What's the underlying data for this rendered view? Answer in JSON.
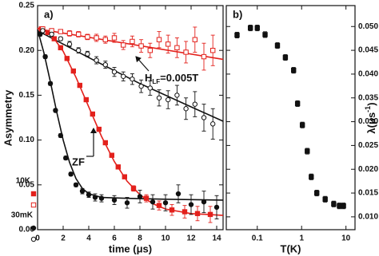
{
  "chart_data": [
    {
      "type": "scatter",
      "panel_label": "a)",
      "xlabel": "time (μs)",
      "ylabel": "Asymmetry",
      "xlim": [
        0,
        14.5
      ],
      "xticks": [
        0,
        2,
        4,
        6,
        8,
        10,
        12,
        14
      ],
      "ylim": [
        0,
        0.25
      ],
      "yticks": [
        {
          "value": 0,
          "label": "0.00"
        },
        0.05,
        {
          "value": 0.1,
          "label": "0.10"
        },
        0.15,
        {
          "value": 0.2,
          "label": "0.20"
        },
        0.25
      ],
      "ytick_side": "left",
      "legend": [
        "10K",
        "30mK"
      ],
      "series": [
        {
          "color": "#e3211c",
          "marker": "square",
          "filled": true,
          "x": [
            0.3,
            0.8,
            1.3,
            1.8,
            2.3,
            2.8,
            3.3,
            3.8,
            4.3,
            4.8,
            5.3,
            5.8,
            6.3,
            6.8,
            7.5,
            8.5,
            9.5,
            10.5,
            11.5,
            12.5,
            13.5
          ],
          "values": [
            0.224,
            0.22,
            0.213,
            0.203,
            0.191,
            0.177,
            0.161,
            0.145,
            0.129,
            0.112,
            0.097,
            0.083,
            0.07,
            0.059,
            0.046,
            0.035,
            0.027,
            0.022,
            0.02,
            0.018,
            0.017
          ],
          "errors": [
            0.002,
            0.002,
            0.002,
            0.002,
            0.002,
            0.002,
            0.002,
            0.002,
            0.002,
            0.002,
            0.002,
            0.002,
            0.002,
            0.002,
            0.003,
            0.004,
            0.005,
            0.006,
            0.007,
            0.008,
            0.009
          ]
        },
        {
          "color": "#e3211c",
          "marker": "square",
          "filled": false,
          "x": [
            0.4,
            1.1,
            1.8,
            2.5,
            3.2,
            3.9,
            4.6,
            5.3,
            6,
            6.7,
            7.4,
            8.1,
            8.8,
            9.5,
            10.2,
            10.9,
            11.6,
            12.3,
            13,
            13.7
          ],
          "values": [
            0.224,
            0.222,
            0.221,
            0.219,
            0.218,
            0.215,
            0.214,
            0.212,
            0.214,
            0.206,
            0.21,
            0.205,
            0.2,
            0.212,
            0.207,
            0.203,
            0.198,
            0.212,
            0.193,
            0.2
          ],
          "errors": [
            0.002,
            0.002,
            0.002,
            0.003,
            0.003,
            0.003,
            0.004,
            0.004,
            0.005,
            0.005,
            0.006,
            0.007,
            0.008,
            0.009,
            0.01,
            0.011,
            0.012,
            0.014,
            0.015,
            0.017
          ]
        },
        {
          "color": "#111111",
          "marker": "circle",
          "filled": true,
          "x": [
            0.2,
            0.6,
            1,
            1.4,
            1.8,
            2.2,
            2.6,
            3,
            3.5,
            4,
            4.5,
            5,
            6,
            7,
            8,
            9,
            10,
            11,
            12,
            13,
            14
          ],
          "values": [
            0.218,
            0.193,
            0.163,
            0.133,
            0.105,
            0.08,
            0.062,
            0.05,
            0.043,
            0.039,
            0.036,
            0.035,
            0.033,
            0.03,
            0.037,
            0.031,
            0.03,
            0.04,
            0.028,
            0.031,
            0.025
          ],
          "errors": [
            0.002,
            0.002,
            0.002,
            0.002,
            0.002,
            0.002,
            0.002,
            0.002,
            0.003,
            0.003,
            0.004,
            0.004,
            0.005,
            0.006,
            0.007,
            0.008,
            0.009,
            0.01,
            0.011,
            0.012,
            0.013
          ]
        },
        {
          "color": "#111111",
          "marker": "circle",
          "filled": false,
          "x": [
            0.4,
            1.1,
            1.8,
            2.5,
            3.2,
            3.9,
            4.6,
            5.3,
            6,
            6.7,
            7.4,
            8.1,
            8.8,
            9.5,
            10.2,
            10.9,
            11.6,
            12.3,
            13,
            13.7
          ],
          "values": [
            0.222,
            0.218,
            0.213,
            0.207,
            0.2,
            0.196,
            0.189,
            0.184,
            0.176,
            0.171,
            0.168,
            0.16,
            0.158,
            0.147,
            0.145,
            0.15,
            0.135,
            0.14,
            0.125,
            0.118
          ],
          "errors": [
            0.002,
            0.002,
            0.002,
            0.003,
            0.003,
            0.003,
            0.004,
            0.004,
            0.005,
            0.005,
            0.006,
            0.007,
            0.008,
            0.009,
            0.01,
            0.011,
            0.012,
            0.014,
            0.015,
            0.017
          ]
        }
      ],
      "fits": [
        {
          "color": "#e3211c",
          "x": [
            0,
            1,
            2,
            3,
            4,
            5,
            6,
            7,
            8,
            9,
            10,
            12,
            14.5
          ],
          "values": [
            0.225,
            0.219,
            0.199,
            0.17,
            0.137,
            0.104,
            0.076,
            0.054,
            0.039,
            0.029,
            0.023,
            0.018,
            0.016
          ]
        },
        {
          "color": "#e3211c",
          "x": [
            0,
            14.5
          ],
          "values": [
            0.224,
            0.19
          ]
        },
        {
          "color": "#111111",
          "x": [
            0,
            0.5,
            1,
            1.5,
            2,
            2.5,
            3,
            3.5,
            4,
            5,
            7,
            10,
            14.5
          ],
          "values": [
            0.223,
            0.197,
            0.165,
            0.131,
            0.1,
            0.075,
            0.057,
            0.046,
            0.04,
            0.036,
            0.035,
            0.034,
            0.033
          ]
        },
        {
          "color": "#111111",
          "x": [
            0,
            4,
            8,
            12,
            14.5
          ],
          "values": [
            0.222,
            0.192,
            0.163,
            0.137,
            0.121
          ]
        }
      ],
      "annotations": [
        {
          "text": "H",
          "subscript": "LF",
          "suffix": "=0.005T"
        },
        {
          "text": "ZF"
        }
      ]
    },
    {
      "type": "scatter",
      "panel_label": "b)",
      "xlabel": "T(K)",
      "ylabel": {
        "text": "λ(μs",
        "superscript": "-1",
        "suffix": ")"
      },
      "xscale": "log",
      "xlim": [
        0.02,
        16
      ],
      "xticks": [
        0.1,
        1,
        10
      ],
      "ylim": [
        0.0073,
        0.0544
      ],
      "yticks": [
        {
          "value": 0.01,
          "label": "0.010"
        },
        0.015,
        {
          "value": 0.02,
          "label": "0.020"
        },
        0.025,
        {
          "value": 0.03,
          "label": "0.030"
        },
        0.035,
        {
          "value": 0.04,
          "label": "0.040"
        },
        0.045,
        {
          "value": 0.05,
          "label": "0.050"
        }
      ],
      "ytick_side": "right",
      "series": [
        {
          "color": "#111111",
          "marker": "square",
          "filled": true,
          "x": [
            0.035,
            0.07,
            0.1,
            0.15,
            0.285,
            0.43,
            0.66,
            0.81,
            1.04,
            1.34,
            1.65,
            2.2,
            3.4,
            5.3,
            7.1,
            8.8
          ],
          "values": [
            0.0482,
            0.0497,
            0.0497,
            0.0483,
            0.046,
            0.0435,
            0.0408,
            0.0338,
            0.0293,
            0.0238,
            0.0184,
            0.015,
            0.0137,
            0.0127,
            0.0123,
            0.0123
          ],
          "errors": [
            0.0006,
            0.0006,
            0.0006,
            0.0006,
            0.0006,
            0.0006,
            0.0006,
            0.0006,
            0.0006,
            0.0006,
            0.0006,
            0.0006,
            0.0006,
            0.0006,
            0.0006,
            0.0006
          ]
        }
      ]
    }
  ]
}
